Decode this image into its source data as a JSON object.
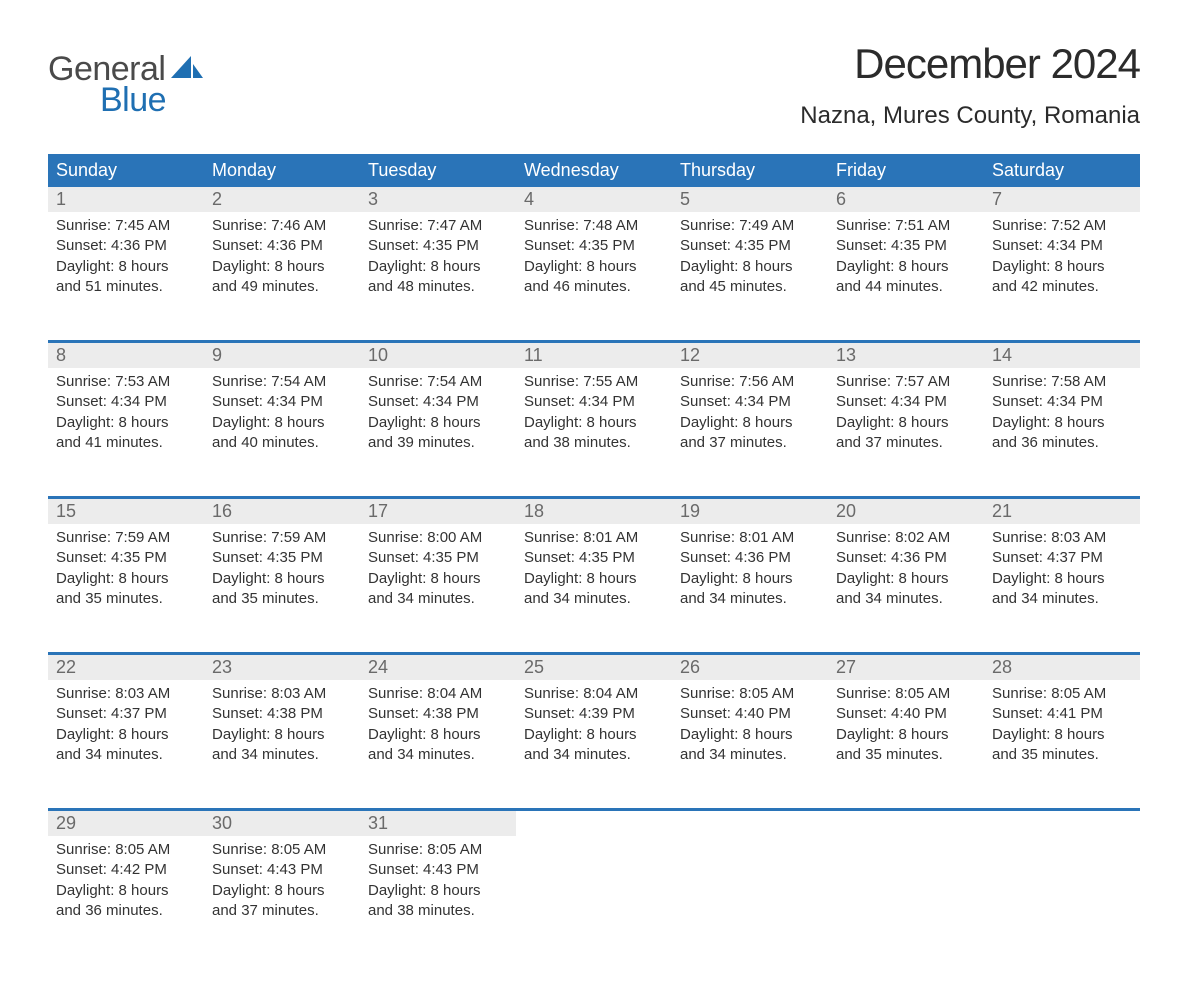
{
  "logo": {
    "word1": "General",
    "word2": "Blue",
    "word1_color": "#4a4a4a",
    "word2_color": "#1f6fb2",
    "sail_color": "#1f6fb2"
  },
  "title": "December 2024",
  "location": "Nazna, Mures County, Romania",
  "colors": {
    "header_bg": "#2a74b8",
    "header_text": "#ffffff",
    "daynum_bg": "#ececec",
    "daynum_text": "#6a6a6a",
    "body_text": "#333333",
    "separator": "#2a74b8",
    "page_bg": "#ffffff"
  },
  "typography": {
    "title_fontsize": 42,
    "location_fontsize": 24,
    "header_fontsize": 18,
    "daynum_fontsize": 18,
    "body_fontsize": 15
  },
  "weekdays": [
    "Sunday",
    "Monday",
    "Tuesday",
    "Wednesday",
    "Thursday",
    "Friday",
    "Saturday"
  ],
  "labels": {
    "sunrise": "Sunrise:",
    "sunset": "Sunset:",
    "daylight": "Daylight:"
  },
  "weeks": [
    [
      {
        "day": "1",
        "sunrise": "7:45 AM",
        "sunset": "4:36 PM",
        "daylight": "8 hours and 51 minutes."
      },
      {
        "day": "2",
        "sunrise": "7:46 AM",
        "sunset": "4:36 PM",
        "daylight": "8 hours and 49 minutes."
      },
      {
        "day": "3",
        "sunrise": "7:47 AM",
        "sunset": "4:35 PM",
        "daylight": "8 hours and 48 minutes."
      },
      {
        "day": "4",
        "sunrise": "7:48 AM",
        "sunset": "4:35 PM",
        "daylight": "8 hours and 46 minutes."
      },
      {
        "day": "5",
        "sunrise": "7:49 AM",
        "sunset": "4:35 PM",
        "daylight": "8 hours and 45 minutes."
      },
      {
        "day": "6",
        "sunrise": "7:51 AM",
        "sunset": "4:35 PM",
        "daylight": "8 hours and 44 minutes."
      },
      {
        "day": "7",
        "sunrise": "7:52 AM",
        "sunset": "4:34 PM",
        "daylight": "8 hours and 42 minutes."
      }
    ],
    [
      {
        "day": "8",
        "sunrise": "7:53 AM",
        "sunset": "4:34 PM",
        "daylight": "8 hours and 41 minutes."
      },
      {
        "day": "9",
        "sunrise": "7:54 AM",
        "sunset": "4:34 PM",
        "daylight": "8 hours and 40 minutes."
      },
      {
        "day": "10",
        "sunrise": "7:54 AM",
        "sunset": "4:34 PM",
        "daylight": "8 hours and 39 minutes."
      },
      {
        "day": "11",
        "sunrise": "7:55 AM",
        "sunset": "4:34 PM",
        "daylight": "8 hours and 38 minutes."
      },
      {
        "day": "12",
        "sunrise": "7:56 AM",
        "sunset": "4:34 PM",
        "daylight": "8 hours and 37 minutes."
      },
      {
        "day": "13",
        "sunrise": "7:57 AM",
        "sunset": "4:34 PM",
        "daylight": "8 hours and 37 minutes."
      },
      {
        "day": "14",
        "sunrise": "7:58 AM",
        "sunset": "4:34 PM",
        "daylight": "8 hours and 36 minutes."
      }
    ],
    [
      {
        "day": "15",
        "sunrise": "7:59 AM",
        "sunset": "4:35 PM",
        "daylight": "8 hours and 35 minutes."
      },
      {
        "day": "16",
        "sunrise": "7:59 AM",
        "sunset": "4:35 PM",
        "daylight": "8 hours and 35 minutes."
      },
      {
        "day": "17",
        "sunrise": "8:00 AM",
        "sunset": "4:35 PM",
        "daylight": "8 hours and 34 minutes."
      },
      {
        "day": "18",
        "sunrise": "8:01 AM",
        "sunset": "4:35 PM",
        "daylight": "8 hours and 34 minutes."
      },
      {
        "day": "19",
        "sunrise": "8:01 AM",
        "sunset": "4:36 PM",
        "daylight": "8 hours and 34 minutes."
      },
      {
        "day": "20",
        "sunrise": "8:02 AM",
        "sunset": "4:36 PM",
        "daylight": "8 hours and 34 minutes."
      },
      {
        "day": "21",
        "sunrise": "8:03 AM",
        "sunset": "4:37 PM",
        "daylight": "8 hours and 34 minutes."
      }
    ],
    [
      {
        "day": "22",
        "sunrise": "8:03 AM",
        "sunset": "4:37 PM",
        "daylight": "8 hours and 34 minutes."
      },
      {
        "day": "23",
        "sunrise": "8:03 AM",
        "sunset": "4:38 PM",
        "daylight": "8 hours and 34 minutes."
      },
      {
        "day": "24",
        "sunrise": "8:04 AM",
        "sunset": "4:38 PM",
        "daylight": "8 hours and 34 minutes."
      },
      {
        "day": "25",
        "sunrise": "8:04 AM",
        "sunset": "4:39 PM",
        "daylight": "8 hours and 34 minutes."
      },
      {
        "day": "26",
        "sunrise": "8:05 AM",
        "sunset": "4:40 PM",
        "daylight": "8 hours and 34 minutes."
      },
      {
        "day": "27",
        "sunrise": "8:05 AM",
        "sunset": "4:40 PM",
        "daylight": "8 hours and 35 minutes."
      },
      {
        "day": "28",
        "sunrise": "8:05 AM",
        "sunset": "4:41 PM",
        "daylight": "8 hours and 35 minutes."
      }
    ],
    [
      {
        "day": "29",
        "sunrise": "8:05 AM",
        "sunset": "4:42 PM",
        "daylight": "8 hours and 36 minutes."
      },
      {
        "day": "30",
        "sunrise": "8:05 AM",
        "sunset": "4:43 PM",
        "daylight": "8 hours and 37 minutes."
      },
      {
        "day": "31",
        "sunrise": "8:05 AM",
        "sunset": "4:43 PM",
        "daylight": "8 hours and 38 minutes."
      },
      null,
      null,
      null,
      null
    ]
  ]
}
